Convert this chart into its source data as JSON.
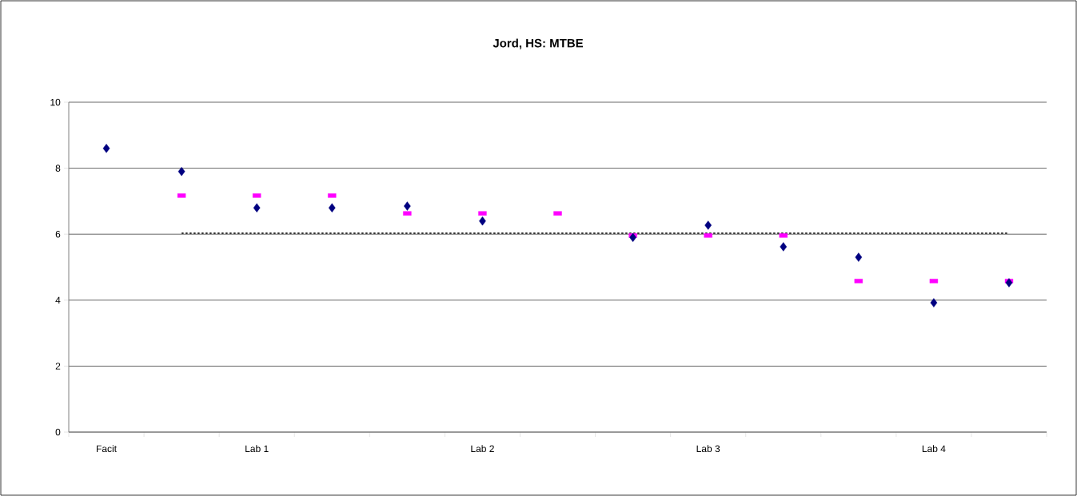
{
  "chart_data": {
    "type": "scatter",
    "title": "Jord, HS: MTBE",
    "categories": [
      "Facit",
      null,
      "Lab 1",
      null,
      null,
      "Lab 2",
      null,
      null,
      "Lab 3",
      null,
      null,
      "Lab 4",
      null
    ],
    "series": [
      {
        "color": "#000080",
        "marker": "diamond",
        "values": [
          8.6,
          7.9,
          6.8,
          6.8,
          6.85,
          6.4,
          null,
          5.9,
          6.27,
          5.62,
          5.3,
          3.92,
          4.53
        ]
      },
      {
        "color": "#ff00ff",
        "marker": "square",
        "values": [
          null,
          7.17,
          7.17,
          7.17,
          6.63,
          6.63,
          6.63,
          5.96,
          5.96,
          5.96,
          4.58,
          4.58,
          4.58
        ]
      },
      {
        "type": "line",
        "color": "#000000",
        "line_style": "dotted",
        "marker": "none",
        "values": [
          null,
          6.03,
          6.03,
          6.03,
          6.03,
          6.03,
          6.03,
          6.03,
          6.03,
          6.03,
          6.03,
          6.03,
          6.03
        ]
      }
    ],
    "ylim": [
      0,
      10
    ],
    "yticks": [
      0,
      2,
      4,
      6,
      8,
      10
    ],
    "grid": "y"
  }
}
